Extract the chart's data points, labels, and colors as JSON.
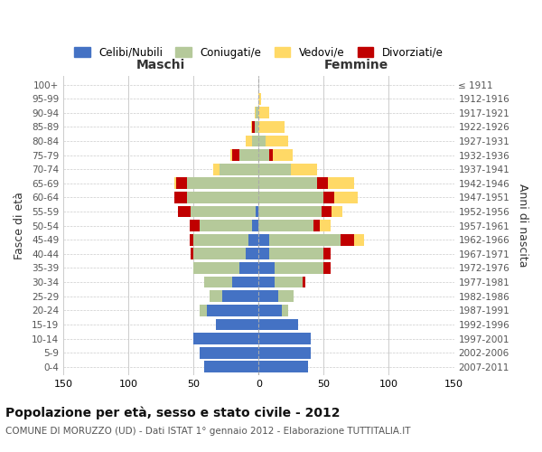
{
  "age_groups": [
    "0-4",
    "5-9",
    "10-14",
    "15-19",
    "20-24",
    "25-29",
    "30-34",
    "35-39",
    "40-44",
    "45-49",
    "50-54",
    "55-59",
    "60-64",
    "65-69",
    "70-74",
    "75-79",
    "80-84",
    "85-89",
    "90-94",
    "95-99",
    "100+"
  ],
  "birth_years": [
    "2007-2011",
    "2002-2006",
    "1997-2001",
    "1992-1996",
    "1987-1991",
    "1982-1986",
    "1977-1981",
    "1972-1976",
    "1967-1971",
    "1962-1966",
    "1957-1961",
    "1952-1956",
    "1947-1951",
    "1942-1946",
    "1937-1941",
    "1932-1936",
    "1927-1931",
    "1922-1926",
    "1917-1921",
    "1912-1916",
    "≤ 1911"
  ],
  "maschi": {
    "celibi": [
      42,
      45,
      50,
      33,
      40,
      28,
      20,
      15,
      10,
      8,
      5,
      2,
      0,
      0,
      0,
      0,
      0,
      0,
      0,
      0,
      0
    ],
    "coniugati": [
      0,
      0,
      0,
      0,
      5,
      10,
      22,
      35,
      40,
      42,
      40,
      50,
      55,
      55,
      30,
      15,
      5,
      3,
      2,
      0,
      0
    ],
    "vedovi": [
      0,
      0,
      0,
      0,
      0,
      0,
      0,
      0,
      0,
      0,
      0,
      0,
      0,
      2,
      5,
      2,
      5,
      1,
      1,
      0,
      0
    ],
    "divorziati": [
      0,
      0,
      0,
      0,
      0,
      0,
      0,
      0,
      2,
      3,
      8,
      10,
      10,
      8,
      0,
      5,
      0,
      2,
      0,
      0,
      0
    ]
  },
  "femmine": {
    "nubili": [
      38,
      40,
      40,
      30,
      18,
      15,
      12,
      12,
      8,
      8,
      0,
      0,
      0,
      0,
      0,
      0,
      0,
      0,
      0,
      0,
      0
    ],
    "coniugate": [
      0,
      0,
      0,
      0,
      5,
      12,
      22,
      38,
      42,
      55,
      42,
      48,
      50,
      45,
      25,
      8,
      5,
      0,
      0,
      0,
      0
    ],
    "vedove": [
      0,
      0,
      0,
      0,
      0,
      0,
      0,
      0,
      0,
      8,
      8,
      8,
      18,
      20,
      20,
      15,
      18,
      20,
      8,
      2,
      0
    ],
    "divorziate": [
      0,
      0,
      0,
      0,
      0,
      0,
      2,
      5,
      5,
      10,
      5,
      8,
      8,
      8,
      0,
      3,
      0,
      0,
      0,
      0,
      0
    ]
  },
  "colors": {
    "celibi_nubili": "#4472c4",
    "coniugati_e": "#b5c99a",
    "vedovi_e": "#ffd966",
    "divorziati_e": "#c00000"
  },
  "xlim": 150,
  "title": "Popolazione per età, sesso e stato civile - 2012",
  "subtitle": "COMUNE DI MORUZZO (UD) - Dati ISTAT 1° gennaio 2012 - Elaborazione TUTTITALIA.IT",
  "ylabel_left": "Fasce di età",
  "ylabel_right": "Anni di nascita",
  "xlabel_left": "Maschi",
  "xlabel_right": "Femmine",
  "legend_labels": [
    "Celibi/Nubili",
    "Coniugati/e",
    "Vedovi/e",
    "Divorziati/e"
  ],
  "background_color": "#ffffff",
  "grid_color": "#cccccc"
}
